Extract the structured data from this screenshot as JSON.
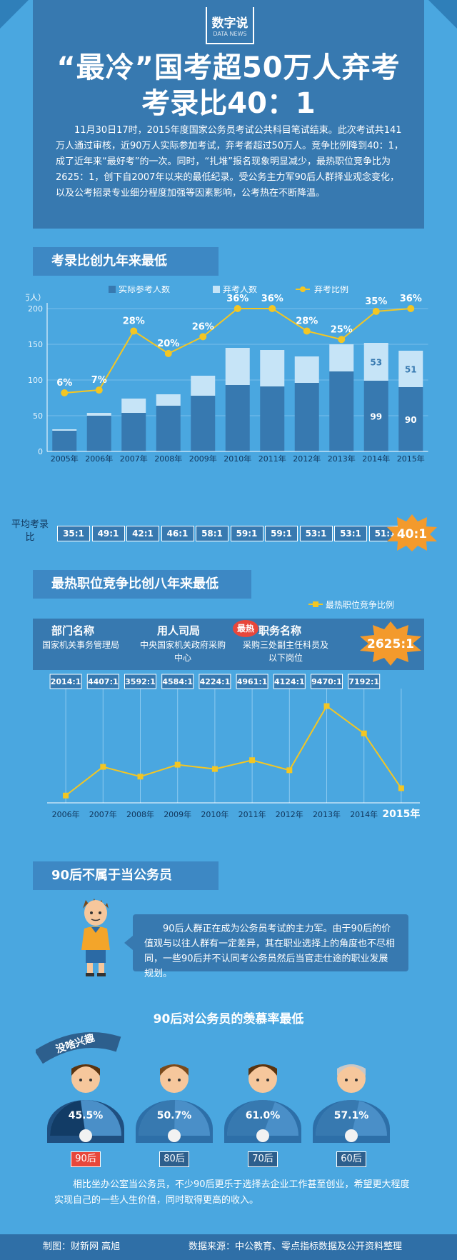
{
  "header": {
    "logo_text": "数字说",
    "logo_sub": "DATA NEWS",
    "title_line1": "“最冷”国考超50万人弃考",
    "title_line2": "考录比40：1",
    "intro": "11月30日17时，2015年度国家公务员考试公共科目笔试结束。此次考试共141万人通过审核，近90万人实际参加考试，弃考者超过50万人。竞争比例降到40：1，成了近年来“最好考”的一次。同时，“扎堆”报名现象明显减少，最热职位竞争比为2625：1，创下自2007年以来的最低纪录。受公务主力军90后人群择业观念变化，以及公考招录专业细分程度加强等因素影响，公考热在不断降温。"
  },
  "section1": {
    "title": "考录比创九年来最低",
    "ratio_label": "平均考录比",
    "ratios": [
      "35:1",
      "49:1",
      "42:1",
      "46:1",
      "58:1",
      "59:1",
      "59:1",
      "53:1",
      "53:1",
      "51:1"
    ],
    "ratio_2015": "40:1"
  },
  "section2": {
    "title": "最热职位竞争比创八年来最低",
    "legend": "最热职位竞争比例",
    "col1_h": "部门名称",
    "col1_v": "国家机关事务管理局",
    "col2_h": "用人司局",
    "col2_v": "中央国家机关政府采购中心",
    "col3_h": "职务名称",
    "col3_v": "采购三处副主任科员及以下岗位",
    "badge": "最热",
    "ratio_2015": "2625:1"
  },
  "section3": {
    "title": "90后不属于当公务员",
    "bubble": "90后人群正在成为公务员考试的主力军。由于90后的价值观与以往人群有一定差异，其在职业选择上的角度也不尽相同，一些90后并不认同考公务员然后当官走仕途的职业发展规划。",
    "subtitle": "90后对公务员的羡慕率最低",
    "tag": "没啥兴趣",
    "groups": [
      {
        "label": "90后",
        "pct": "45.5%",
        "value": 45.5
      },
      {
        "label": "80后",
        "pct": "50.7%",
        "value": 50.7
      },
      {
        "label": "70后",
        "pct": "61.0%",
        "value": 61.0
      },
      {
        "label": "60后",
        "pct": "57.1%",
        "value": 57.1
      }
    ],
    "note": "相比坐办公室当公务员，不少90后更乐于选择去企业工作甚至创业，希望更大程度实现自己的一些人生价值，同时取得更高的收入。"
  },
  "footer": {
    "left": "制图：财新网 高旭",
    "right": "数据来源：中公教育、零点指标数据及公开资料整理"
  },
  "chart_data": [
    {
      "type": "bar",
      "title": "考录比创九年来最低",
      "ylabel": "（万人）",
      "ylim": [
        0,
        200
      ],
      "yticks": [
        0,
        50,
        100,
        150,
        200
      ],
      "categories": [
        "2005年",
        "2006年",
        "2007年",
        "2008年",
        "2009年",
        "2010年",
        "2011年",
        "2012年",
        "2013年",
        "2014年",
        "2015年"
      ],
      "series": [
        {
          "name": "实际参考人数",
          "color": "#3779b0",
          "values": [
            29,
            50,
            54,
            64,
            78,
            93,
            91,
            96,
            112,
            99,
            90
          ]
        },
        {
          "name": "弃考人数",
          "color": "#c6e4f7",
          "values": [
            2,
            4,
            20,
            16,
            28,
            52,
            51,
            37,
            38,
            53,
            51
          ]
        },
        {
          "name": "弃考比例",
          "color": "#f3c623",
          "type": "line",
          "values": [
            6,
            7,
            28,
            20,
            26,
            36,
            36,
            28,
            25,
            35,
            36
          ],
          "labels": [
            "6%",
            "7%",
            "28%",
            "20%",
            "26%",
            "36%",
            "36%",
            "28%",
            "25%",
            "35%",
            "36%"
          ]
        }
      ],
      "bar_value_labels": {
        "2014年": [
          99,
          53
        ],
        "2015年": [
          90,
          51
        ]
      },
      "legend": "top"
    },
    {
      "type": "line",
      "title": "最热职位竞争比创八年来最低",
      "categories": [
        "2006年",
        "2007年",
        "2008年",
        "2009年",
        "2010年",
        "2011年",
        "2012年",
        "2013年",
        "2014年",
        "2015年"
      ],
      "series": [
        {
          "name": "最热职位竞争比例",
          "color": "#f3c623",
          "values": [
            2014,
            4407,
            3592,
            4584,
            4224,
            4961,
            4124,
            9470,
            7192,
            2625
          ],
          "labels": [
            "2014:1",
            "4407:1",
            "3592:1",
            "4584:1",
            "4224:1",
            "4961:1",
            "4124:1",
            "9470:1",
            "7192:1",
            "2625:1"
          ]
        }
      ],
      "legend": "top-right"
    }
  ]
}
